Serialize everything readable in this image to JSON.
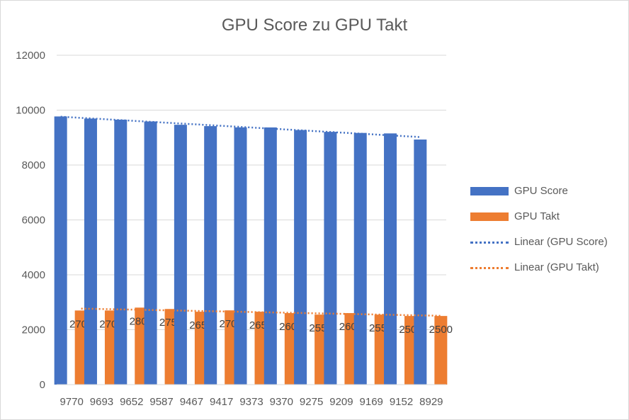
{
  "chart_data": {
    "type": "bar",
    "title": "GPU Score zu GPU Takt",
    "categories": [
      "9770",
      "9693",
      "9652",
      "9587",
      "9467",
      "9417",
      "9373",
      "9370",
      "9275",
      "9209",
      "9169",
      "9152",
      "8929"
    ],
    "series": [
      {
        "name": "GPU Score",
        "color": "#4472c4",
        "values": [
          9770,
          9693,
          9652,
          9587,
          9467,
          9417,
          9373,
          9370,
          9275,
          9209,
          9169,
          9152,
          8929
        ],
        "data_labels": false
      },
      {
        "name": "GPU Takt",
        "color": "#ed7d31",
        "values": [
          2700,
          2700,
          2805,
          2755,
          2655,
          2705,
          2655,
          2605,
          2550,
          2605,
          2550,
          2500,
          2500
        ],
        "data_labels": true
      }
    ],
    "trendlines": [
      {
        "name": "Linear (GPU Score)",
        "series": "GPU Score",
        "type": "linear",
        "color": "#4472c4"
      },
      {
        "name": "Linear (GPU Takt)",
        "series": "GPU Takt",
        "type": "linear",
        "color": "#ed7d31"
      }
    ],
    "y_ticks": [
      "0",
      "2000",
      "4000",
      "6000",
      "8000",
      "10000",
      "12000"
    ],
    "ylim": [
      0,
      12000
    ],
    "grid": true,
    "legend_position": "right"
  }
}
